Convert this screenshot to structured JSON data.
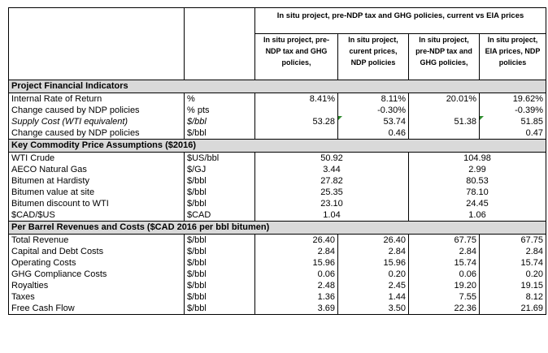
{
  "header": {
    "title": "In situ project, pre-NDP tax and GHG policies, current vs EIA prices",
    "columns": [
      "In situ project, pre-NDP tax and GHG policies,",
      "In situ project, curent prices, NDP policies",
      "In situ project, pre-NDP tax and GHG policies,",
      "In situ project, EIA prices, NDP policies"
    ]
  },
  "sections": {
    "financial": "Project Financial Indicators",
    "prices": "Key Commodity Price Assumptions ($2016)",
    "revenues": "Per Barrel Revenues and Costs ($CAD 2016 per bbl bitumen)"
  },
  "financial_rows": [
    {
      "label": "Internal Rate of Return",
      "unit": "%",
      "v": [
        "8.41%",
        "8.11%",
        "20.01%",
        "19.62%"
      ]
    },
    {
      "label": "Change caused by NDP policies",
      "unit": "% pts",
      "v": [
        "",
        "-0.30%",
        "",
        "-0.39%"
      ]
    },
    {
      "label": "Supply Cost (WTI equivalent)",
      "unit": "$/bbl",
      "v": [
        "53.28",
        "53.74",
        "51.38",
        "51.85"
      ]
    },
    {
      "label": "Change caused by NDP policies",
      "unit": "$/bbl",
      "v": [
        "",
        "0.46",
        "",
        "0.47"
      ]
    }
  ],
  "price_rows": [
    {
      "label": "WTI Crude",
      "unit": "$US/bbl",
      "current": "50.92",
      "eia": "104.98"
    },
    {
      "label": "AECO Natural Gas",
      "unit": "$/GJ",
      "current": "3.44",
      "eia": "2.99"
    },
    {
      "label": "Bitumen at Hardisty",
      "unit": "$/bbl",
      "current": "27.82",
      "eia": "80.53"
    },
    {
      "label": "Bitumen value at site",
      "unit": "$/bbl",
      "current": "25.35",
      "eia": "78.10"
    },
    {
      "label": "Bitumen discount to WTI",
      "unit": "$/bbl",
      "current": "23.10",
      "eia": "24.45"
    },
    {
      "label": "$CAD/$US",
      "unit": "$CAD",
      "current": "1.04",
      "eia": "1.06"
    }
  ],
  "revenue_rows": [
    {
      "label": "Total Revenue",
      "unit": "$/bbl",
      "v": [
        "26.40",
        "26.40",
        "67.75",
        "67.75"
      ]
    },
    {
      "label": "Capital and Debt Costs",
      "unit": "$/bbl",
      "v": [
        "2.84",
        "2.84",
        "2.84",
        "2.84"
      ]
    },
    {
      "label": "Operating Costs",
      "unit": "$/bbl",
      "v": [
        "15.96",
        "15.96",
        "15.74",
        "15.74"
      ]
    },
    {
      "label": "GHG Compliance Costs",
      "unit": "$/bbl",
      "v": [
        "0.06",
        "0.20",
        "0.06",
        "0.20"
      ]
    },
    {
      "label": "Royalties",
      "unit": "$/bbl",
      "v": [
        "2.48",
        "2.45",
        "19.20",
        "19.15"
      ]
    },
    {
      "label": "Taxes",
      "unit": "$/bbl",
      "v": [
        "1.36",
        "1.44",
        "7.55",
        "8.12"
      ]
    },
    {
      "label": "Free Cash Flow",
      "unit": "$/bbl",
      "v": [
        "3.69",
        "3.50",
        "22.36",
        "21.69"
      ]
    }
  ],
  "colors": {
    "section_fill": "#d9d9d9",
    "comment_marker": "#2e8b2e"
  }
}
